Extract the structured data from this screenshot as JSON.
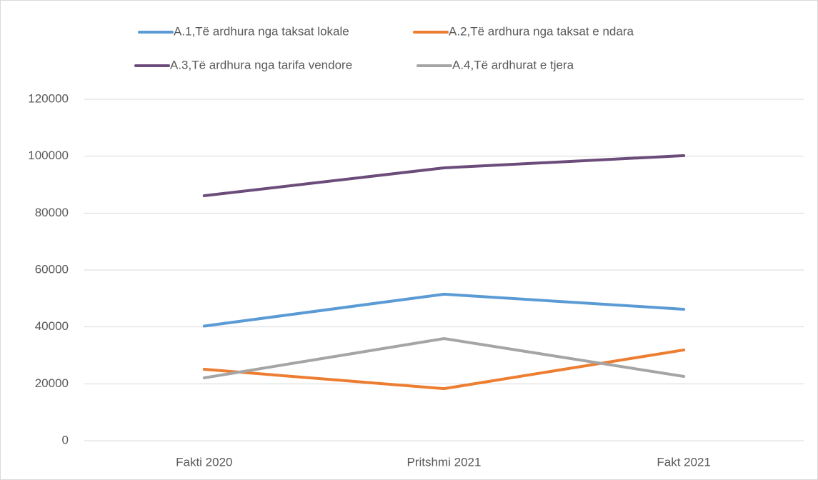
{
  "chart_data": {
    "type": "line",
    "categories": [
      "Fakti 2020",
      "Pritshmi 2021",
      "Fakt 2021"
    ],
    "series": [
      {
        "name": "A.1,Të ardhura nga taksat lokale",
        "color": "#5b9bd5",
        "values": [
          40300,
          51500,
          46200
        ]
      },
      {
        "name": "A.2,Të ardhura nga taksat e ndara",
        "color": "#ed7d31",
        "values": [
          25100,
          18300,
          31900
        ]
      },
      {
        "name": "A.3,Të ardhura nga tarifa vendore",
        "color": "#6b4c7a",
        "values": [
          86100,
          95900,
          100200
        ]
      },
      {
        "name": "A.4,Të ardhurat e tjera",
        "color": "#a5a5a5",
        "values": [
          22100,
          35900,
          22600
        ]
      }
    ],
    "ylim": [
      0,
      120000
    ],
    "yticks": [
      0,
      20000,
      40000,
      60000,
      80000,
      100000,
      120000
    ],
    "grid": true,
    "legend": "top"
  }
}
